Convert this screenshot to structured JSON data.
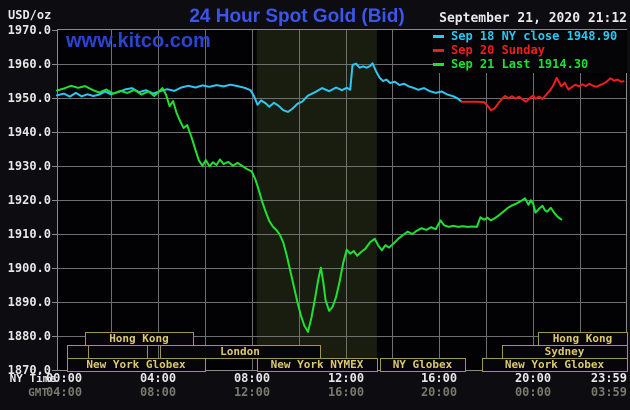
{
  "header": {
    "units_label": "USD/oz",
    "title": "24 Hour Spot Gold (Bid)",
    "timestamp": "September 21, 2020 21:12",
    "watermark": "www.kitco.com"
  },
  "axes": {
    "ny_time_label": "NY Time",
    "gmt_label": "GMT",
    "y_ticks": [
      1970.0,
      1960.0,
      1950.0,
      1940.0,
      1930.0,
      1920.0,
      1910.0,
      1900.0,
      1890.0,
      1880.0,
      1870.0
    ],
    "x_ticks": [
      {
        "ny": "00:00",
        "gmt": "04:00",
        "hour": 0,
        "align": "center"
      },
      {
        "ny": "04:00",
        "gmt": "08:00",
        "hour": 4,
        "align": "center"
      },
      {
        "ny": "08:00",
        "gmt": "12:00",
        "hour": 8,
        "align": "center"
      },
      {
        "ny": "12:00",
        "gmt": "16:00",
        "hour": 12,
        "align": "center"
      },
      {
        "ny": "16:00",
        "gmt": "20:00",
        "hour": 16,
        "align": "center"
      },
      {
        "ny": "20:00",
        "gmt": "00:00",
        "hour": 20,
        "align": "center"
      },
      {
        "ny": "23:59",
        "gmt": "03:59",
        "hour": 23.983,
        "align": "right"
      }
    ]
  },
  "sessions": [
    {
      "label": "Hong Kong",
      "row": 0,
      "h1": 0.9,
      "h2": 5.5
    },
    {
      "label": "Hong Kong",
      "row": 0,
      "h1": 20.2,
      "h2": 24.0
    },
    {
      "label": "",
      "row": 1,
      "h1": 0.13,
      "h2": 1.02
    },
    {
      "label": "",
      "row": 1,
      "h1": 1.02,
      "h2": 3.54
    },
    {
      "label": "London",
      "row": 1,
      "h1": 4.09,
      "h2": 10.91
    },
    {
      "label": "Sydney",
      "row": 1,
      "h1": 18.67,
      "h2": 24.0
    },
    {
      "label": "New York Globex",
      "row": 2,
      "h1": 0.13,
      "h2": 6.01
    },
    {
      "label": "New York NYMEX",
      "row": 2,
      "h1": 8.23,
      "h2": 13.34
    },
    {
      "label": "NY Globex",
      "row": 2,
      "h1": 13.47,
      "h2": 17.09
    },
    {
      "label": "New York Globex",
      "row": 2,
      "h1": 17.82,
      "h2": 24.0
    }
  ],
  "colors": {
    "page_bg": "#0c0c11",
    "plot_bg": "#020205",
    "band": "#191d10",
    "grid": "#6f6f6f",
    "border": "#8a8a8a",
    "text": "#e8e8e8",
    "dim": "#78786e",
    "title": "#3b55ee",
    "watermark": "#2a44cf",
    "session_text": "#dcc96e",
    "session_border": "#a2964e",
    "session_fill": "#06060a",
    "legend_bg": "#050508"
  },
  "chart_data": {
    "type": "line",
    "title": "24 Hour Spot Gold (Bid)",
    "y_axis": {
      "units": "USD/oz",
      "min": 1870,
      "max": 1970,
      "tick_step": 10
    },
    "x_axis": {
      "label_top": "NY Time",
      "label_bottom": "GMT",
      "hours": [
        0,
        23.983
      ]
    },
    "grid": true,
    "highlight_band_hours": [
      8.22,
      13.34
    ],
    "series": [
      {
        "name": "Sep 18 NY close 1948.90",
        "color": "#2cc7f2",
        "last_value": 1948.9,
        "points": [
          [
            -0.3,
            1950.8
          ],
          [
            0.0,
            1951.3
          ],
          [
            0.25,
            1950.4
          ],
          [
            0.5,
            1951.5
          ],
          [
            0.75,
            1950.5
          ],
          [
            1.0,
            1951.1
          ],
          [
            1.25,
            1950.6
          ],
          [
            1.5,
            1951.0
          ],
          [
            1.75,
            1951.9
          ],
          [
            2.0,
            1951.1
          ],
          [
            2.3,
            1951.7
          ],
          [
            2.6,
            1952.5
          ],
          [
            2.9,
            1952.9
          ],
          [
            3.2,
            1951.7
          ],
          [
            3.5,
            1952.3
          ],
          [
            3.8,
            1951.3
          ],
          [
            4.1,
            1952.0
          ],
          [
            4.4,
            1952.6
          ],
          [
            4.7,
            1952.1
          ],
          [
            5.0,
            1953.1
          ],
          [
            5.3,
            1953.6
          ],
          [
            5.6,
            1953.1
          ],
          [
            5.9,
            1953.7
          ],
          [
            6.2,
            1953.3
          ],
          [
            6.5,
            1953.8
          ],
          [
            6.8,
            1953.4
          ],
          [
            7.1,
            1953.9
          ],
          [
            7.4,
            1953.5
          ],
          [
            7.7,
            1953.0
          ],
          [
            7.95,
            1952.3
          ],
          [
            8.1,
            1950.6
          ],
          [
            8.25,
            1948.0
          ],
          [
            8.4,
            1949.3
          ],
          [
            8.6,
            1948.4
          ],
          [
            8.75,
            1947.4
          ],
          [
            8.95,
            1948.6
          ],
          [
            9.15,
            1947.7
          ],
          [
            9.35,
            1946.4
          ],
          [
            9.55,
            1945.9
          ],
          [
            9.75,
            1946.9
          ],
          [
            9.95,
            1948.3
          ],
          [
            10.15,
            1948.9
          ],
          [
            10.4,
            1950.7
          ],
          [
            10.7,
            1951.7
          ],
          [
            11.0,
            1952.9
          ],
          [
            11.3,
            1952.0
          ],
          [
            11.6,
            1953.1
          ],
          [
            11.85,
            1952.3
          ],
          [
            12.05,
            1953.0
          ],
          [
            12.2,
            1952.4
          ],
          [
            12.3,
            1959.7
          ],
          [
            12.45,
            1960.1
          ],
          [
            12.6,
            1958.9
          ],
          [
            12.75,
            1959.3
          ],
          [
            12.9,
            1958.9
          ],
          [
            13.05,
            1959.4
          ],
          [
            13.15,
            1960.2
          ],
          [
            13.3,
            1957.9
          ],
          [
            13.45,
            1956.0
          ],
          [
            13.6,
            1955.0
          ],
          [
            13.75,
            1955.4
          ],
          [
            13.9,
            1954.4
          ],
          [
            14.1,
            1954.8
          ],
          [
            14.3,
            1953.8
          ],
          [
            14.5,
            1954.2
          ],
          [
            14.7,
            1953.4
          ],
          [
            14.9,
            1953.0
          ],
          [
            15.1,
            1952.4
          ],
          [
            15.35,
            1952.9
          ],
          [
            15.6,
            1952.0
          ],
          [
            15.85,
            1951.5
          ],
          [
            16.1,
            1951.9
          ],
          [
            16.35,
            1951.0
          ],
          [
            16.6,
            1950.5
          ],
          [
            16.8,
            1949.8
          ],
          [
            16.95,
            1948.9
          ]
        ]
      },
      {
        "name": "Sep 20 Sunday",
        "color": "#f01d1d",
        "points": [
          [
            16.95,
            1948.9
          ],
          [
            17.6,
            1948.9
          ],
          [
            17.9,
            1948.8
          ],
          [
            18.05,
            1947.8
          ],
          [
            18.2,
            1946.4
          ],
          [
            18.35,
            1946.9
          ],
          [
            18.5,
            1948.3
          ],
          [
            18.65,
            1949.6
          ],
          [
            18.8,
            1950.6
          ],
          [
            18.95,
            1949.9
          ],
          [
            19.1,
            1950.5
          ],
          [
            19.25,
            1949.8
          ],
          [
            19.4,
            1950.4
          ],
          [
            19.55,
            1949.6
          ],
          [
            19.7,
            1948.9
          ],
          [
            19.85,
            1949.9
          ],
          [
            20.0,
            1950.7
          ],
          [
            20.1,
            1949.8
          ],
          [
            20.25,
            1950.4
          ],
          [
            20.4,
            1949.7
          ],
          [
            20.55,
            1950.9
          ],
          [
            20.7,
            1952.1
          ],
          [
            20.85,
            1953.6
          ],
          [
            21.0,
            1955.9
          ],
          [
            21.1,
            1954.7
          ],
          [
            21.2,
            1953.4
          ],
          [
            21.35,
            1954.5
          ],
          [
            21.5,
            1952.5
          ],
          [
            21.65,
            1953.2
          ],
          [
            21.8,
            1953.9
          ],
          [
            21.95,
            1953.4
          ],
          [
            22.1,
            1954.0
          ],
          [
            22.25,
            1953.5
          ],
          [
            22.4,
            1954.2
          ],
          [
            22.55,
            1953.6
          ],
          [
            22.7,
            1953.3
          ],
          [
            22.85,
            1953.8
          ],
          [
            23.0,
            1954.2
          ],
          [
            23.15,
            1954.9
          ],
          [
            23.3,
            1955.8
          ],
          [
            23.45,
            1955.1
          ],
          [
            23.6,
            1955.4
          ],
          [
            23.75,
            1954.8
          ],
          [
            23.85,
            1954.9
          ]
        ]
      },
      {
        "name": "Sep 21 Last 1914.30",
        "color": "#1ee132",
        "last_value": 1914.3,
        "points": [
          [
            -0.3,
            1952.2
          ],
          [
            0.0,
            1952.8
          ],
          [
            0.3,
            1953.6
          ],
          [
            0.6,
            1953.0
          ],
          [
            0.9,
            1953.5
          ],
          [
            1.2,
            1952.4
          ],
          [
            1.5,
            1951.6
          ],
          [
            1.8,
            1952.5
          ],
          [
            2.1,
            1951.3
          ],
          [
            2.4,
            1952.1
          ],
          [
            2.7,
            1951.5
          ],
          [
            3.0,
            1952.4
          ],
          [
            3.3,
            1951.0
          ],
          [
            3.6,
            1951.9
          ],
          [
            3.85,
            1950.6
          ],
          [
            4.05,
            1951.9
          ],
          [
            4.2,
            1952.9
          ],
          [
            4.35,
            1951.0
          ],
          [
            4.5,
            1947.6
          ],
          [
            4.65,
            1949.1
          ],
          [
            4.8,
            1945.6
          ],
          [
            4.95,
            1943.2
          ],
          [
            5.1,
            1941.2
          ],
          [
            5.25,
            1942.0
          ],
          [
            5.45,
            1938.2
          ],
          [
            5.6,
            1934.8
          ],
          [
            5.75,
            1931.6
          ],
          [
            5.9,
            1930.1
          ],
          [
            6.05,
            1931.7
          ],
          [
            6.2,
            1929.9
          ],
          [
            6.35,
            1931.1
          ],
          [
            6.5,
            1930.3
          ],
          [
            6.65,
            1931.9
          ],
          [
            6.8,
            1930.6
          ],
          [
            7.0,
            1931.2
          ],
          [
            7.2,
            1930.1
          ],
          [
            7.4,
            1930.9
          ],
          [
            7.6,
            1930.0
          ],
          [
            7.8,
            1929.1
          ],
          [
            8.0,
            1928.4
          ],
          [
            8.15,
            1926.2
          ],
          [
            8.3,
            1923.0
          ],
          [
            8.45,
            1919.5
          ],
          [
            8.6,
            1916.5
          ],
          [
            8.75,
            1913.8
          ],
          [
            8.9,
            1912.2
          ],
          [
            9.05,
            1911.2
          ],
          [
            9.2,
            1909.8
          ],
          [
            9.35,
            1907.5
          ],
          [
            9.5,
            1903.5
          ],
          [
            9.65,
            1899.0
          ],
          [
            9.8,
            1894.5
          ],
          [
            9.95,
            1890.0
          ],
          [
            10.1,
            1886.0
          ],
          [
            10.25,
            1883.0
          ],
          [
            10.4,
            1881.2
          ],
          [
            10.55,
            1885.5
          ],
          [
            10.7,
            1891.0
          ],
          [
            10.85,
            1897.0
          ],
          [
            10.95,
            1900.1
          ],
          [
            11.05,
            1896.0
          ],
          [
            11.15,
            1890.5
          ],
          [
            11.3,
            1887.4
          ],
          [
            11.45,
            1888.6
          ],
          [
            11.6,
            1891.5
          ],
          [
            11.75,
            1896.0
          ],
          [
            11.9,
            1901.5
          ],
          [
            12.05,
            1905.4
          ],
          [
            12.2,
            1904.2
          ],
          [
            12.35,
            1905.0
          ],
          [
            12.5,
            1903.6
          ],
          [
            12.65,
            1904.6
          ],
          [
            12.85,
            1905.7
          ],
          [
            13.05,
            1907.6
          ],
          [
            13.25,
            1908.6
          ],
          [
            13.4,
            1906.6
          ],
          [
            13.55,
            1905.2
          ],
          [
            13.7,
            1906.7
          ],
          [
            13.85,
            1906.0
          ],
          [
            14.05,
            1907.2
          ],
          [
            14.25,
            1908.6
          ],
          [
            14.45,
            1909.7
          ],
          [
            14.65,
            1910.7
          ],
          [
            14.85,
            1910.0
          ],
          [
            15.05,
            1911.0
          ],
          [
            15.25,
            1911.7
          ],
          [
            15.45,
            1911.2
          ],
          [
            15.65,
            1912.0
          ],
          [
            15.85,
            1911.4
          ],
          [
            16.05,
            1914.0
          ],
          [
            16.2,
            1912.6
          ],
          [
            16.4,
            1912.1
          ],
          [
            16.6,
            1912.4
          ],
          [
            16.8,
            1912.1
          ],
          [
            17.0,
            1912.3
          ],
          [
            17.2,
            1912.1
          ],
          [
            17.4,
            1912.2
          ],
          [
            17.6,
            1912.1
          ],
          [
            17.75,
            1914.9
          ],
          [
            17.9,
            1914.2
          ],
          [
            18.05,
            1914.8
          ],
          [
            18.2,
            1914.0
          ],
          [
            18.35,
            1914.6
          ],
          [
            18.5,
            1915.3
          ],
          [
            18.7,
            1916.4
          ],
          [
            18.9,
            1917.6
          ],
          [
            19.1,
            1918.4
          ],
          [
            19.3,
            1919.0
          ],
          [
            19.5,
            1919.8
          ],
          [
            19.65,
            1920.5
          ],
          [
            19.8,
            1918.6
          ],
          [
            19.9,
            1919.9
          ],
          [
            20.0,
            1918.9
          ],
          [
            20.1,
            1916.3
          ],
          [
            20.25,
            1917.4
          ],
          [
            20.4,
            1918.3
          ],
          [
            20.5,
            1917.0
          ],
          [
            20.6,
            1916.6
          ],
          [
            20.75,
            1917.7
          ],
          [
            20.9,
            1916.2
          ],
          [
            21.05,
            1915.0
          ],
          [
            21.2,
            1914.3
          ]
        ]
      }
    ]
  }
}
